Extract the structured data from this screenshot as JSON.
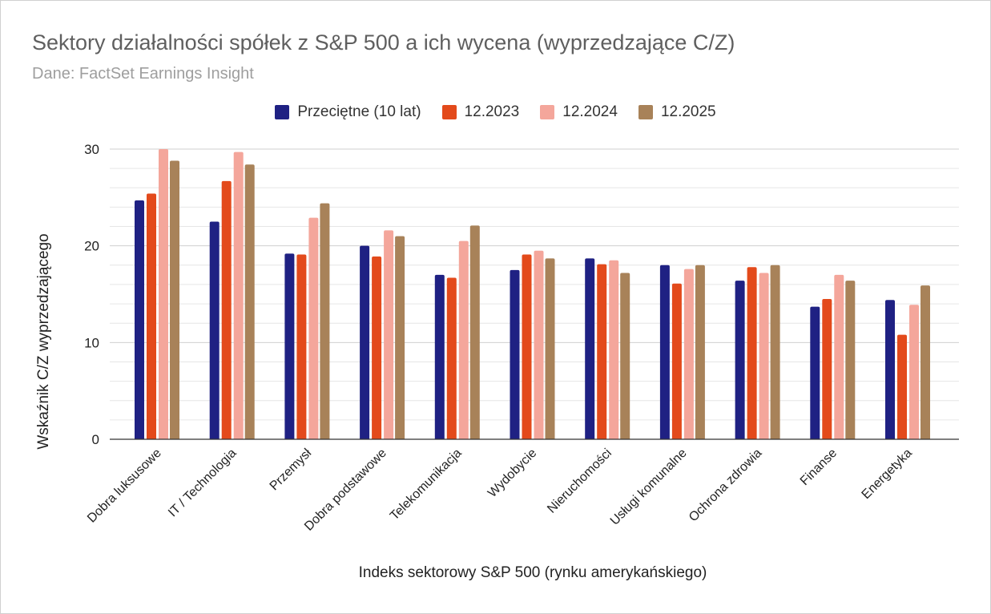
{
  "chart_data": {
    "type": "bar",
    "title": "Sektory działalności spółek z S&P 500 a ich wycena (wyprzedzające C/Z)",
    "subtitle": "Dane: FactSet Earnings Insight",
    "xlabel": "Indeks sektorowy S&P 500 (rynku amerykańskiego)",
    "ylabel": "Wskaźnik C/Z wyprzedzającego",
    "ylim": [
      0,
      30
    ],
    "yticks": [
      "0",
      "10",
      "20",
      "30"
    ],
    "grid": true,
    "legend_position": "top",
    "categories": [
      "Dobra luksusowe",
      "IT / Technologia",
      "Przemysł",
      "Dobra podstawowe",
      "Telekomunikacja",
      "Wydobycie",
      "Nieruchomości",
      "Usługi komunalne",
      "Ochrona zdrowia",
      "Finanse",
      "Energetyka"
    ],
    "series": [
      {
        "name": "Przeciętne (10 lat)",
        "color": "#1f2183",
        "values": [
          24.7,
          22.5,
          19.2,
          20.0,
          17.0,
          17.5,
          18.7,
          18.0,
          16.4,
          13.7,
          14.4
        ]
      },
      {
        "name": "12.2023",
        "color": "#e34a1b",
        "values": [
          25.4,
          26.7,
          19.1,
          18.9,
          16.7,
          19.1,
          18.1,
          16.1,
          17.8,
          14.5,
          10.8
        ]
      },
      {
        "name": "12.2024",
        "color": "#f4a69b",
        "values": [
          30.0,
          29.7,
          22.9,
          21.6,
          20.5,
          19.5,
          18.5,
          17.6,
          17.2,
          17.0,
          13.9
        ]
      },
      {
        "name": "12.2025",
        "color": "#a88259",
        "values": [
          28.8,
          28.4,
          24.4,
          21.0,
          22.1,
          18.7,
          17.2,
          18.0,
          18.0,
          16.4,
          15.9
        ]
      }
    ]
  }
}
